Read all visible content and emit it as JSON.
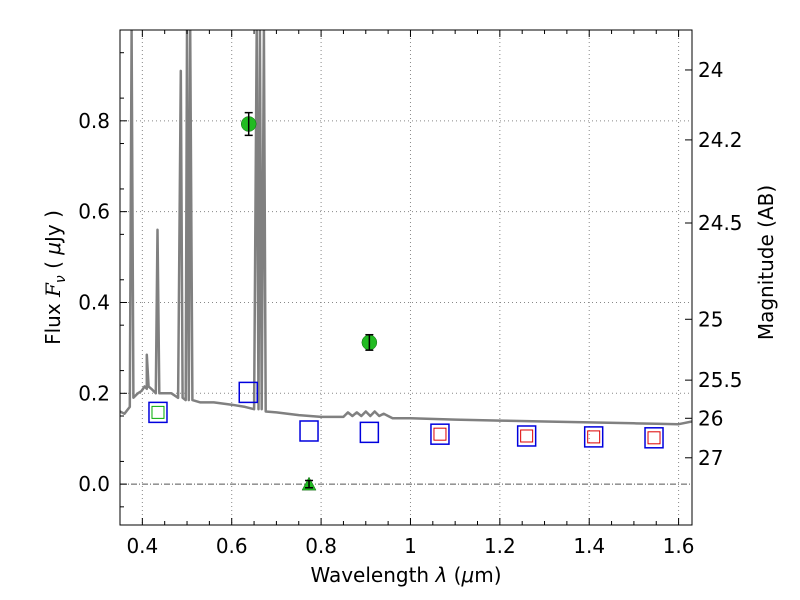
{
  "chart_data": {
    "type": "scatter",
    "xlabel": "Wavelength  λ (μm)",
    "ylabel": "Flux  F_ν  ( μJy )",
    "ylabel_right": "Magnitude (AB)",
    "xlim": [
      0.35,
      1.63
    ],
    "ylim": [
      -0.09,
      1.0
    ],
    "grid": true,
    "x_ticks": [
      0.4,
      0.6,
      0.8,
      1.0,
      1.2,
      1.4,
      1.6
    ],
    "x_tick_labels": [
      "0.4",
      "0.6",
      "0.8",
      "1",
      "1.2",
      "1.4",
      "1.6"
    ],
    "y_ticks": [
      0.0,
      0.2,
      0.4,
      0.6,
      0.8
    ],
    "y_tick_labels": [
      "0.0",
      "0.2",
      "0.4",
      "0.6",
      "0.8"
    ],
    "right_ticks": [
      {
        "label": "24",
        "flux": 0.912
      },
      {
        "label": "24.2",
        "flux": 0.758
      },
      {
        "label": "24.5",
        "flux": 0.575
      },
      {
        "label": "25",
        "flux": 0.363
      },
      {
        "label": "25.5",
        "flux": 0.229
      },
      {
        "label": "26",
        "flux": 0.145
      },
      {
        "label": "27",
        "flux": 0.058
      }
    ],
    "observed_points": [
      {
        "x": 0.638,
        "y": 0.793,
        "yerr": 0.025
      },
      {
        "x": 0.908,
        "y": 0.312,
        "yerr": 0.017
      }
    ],
    "upper_limit_points": [
      {
        "x": 0.773,
        "y": 0.0,
        "yerr": 0.008
      }
    ],
    "model_photometry_blue": [
      {
        "x": 0.435,
        "y": 0.158
      },
      {
        "x": 0.637,
        "y": 0.202
      },
      {
        "x": 0.773,
        "y": 0.117
      },
      {
        "x": 0.908,
        "y": 0.114
      },
      {
        "x": 1.066,
        "y": 0.11
      },
      {
        "x": 1.26,
        "y": 0.106
      },
      {
        "x": 1.41,
        "y": 0.104
      },
      {
        "x": 1.545,
        "y": 0.102
      }
    ],
    "model_photometry_red": [
      {
        "x": 1.066,
        "y": 0.11
      },
      {
        "x": 1.26,
        "y": 0.106
      },
      {
        "x": 1.41,
        "y": 0.104
      },
      {
        "x": 1.545,
        "y": 0.102
      }
    ],
    "model_photometry_green": [
      {
        "x": 0.435,
        "y": 0.158
      }
    ],
    "sed_curve": [
      [
        0.35,
        0.16
      ],
      [
        0.36,
        0.155
      ],
      [
        0.372,
        0.17
      ],
      [
        0.376,
        1.0
      ],
      [
        0.38,
        0.19
      ],
      [
        0.39,
        0.2
      ],
      [
        0.398,
        0.205
      ],
      [
        0.405,
        0.215
      ],
      [
        0.41,
        0.21
      ],
      [
        0.41,
        0.285
      ],
      [
        0.414,
        0.215
      ],
      [
        0.42,
        0.21
      ],
      [
        0.43,
        0.2
      ],
      [
        0.434,
        0.56
      ],
      [
        0.438,
        0.2
      ],
      [
        0.45,
        0.2
      ],
      [
        0.465,
        0.2
      ],
      [
        0.48,
        0.19
      ],
      [
        0.486,
        0.91
      ],
      [
        0.49,
        0.19
      ],
      [
        0.497,
        0.185
      ],
      [
        0.5,
        1.0
      ],
      [
        0.504,
        0.185
      ],
      [
        0.507,
        1.0
      ],
      [
        0.512,
        0.185
      ],
      [
        0.53,
        0.18
      ],
      [
        0.56,
        0.18
      ],
      [
        0.6,
        0.175
      ],
      [
        0.63,
        0.17
      ],
      [
        0.65,
        0.165
      ],
      [
        0.656,
        1.0
      ],
      [
        0.66,
        0.165
      ],
      [
        0.663,
        1.0
      ],
      [
        0.667,
        0.165
      ],
      [
        0.672,
        1.0
      ],
      [
        0.676,
        0.16
      ],
      [
        0.7,
        0.158
      ],
      [
        0.75,
        0.152
      ],
      [
        0.8,
        0.148
      ],
      [
        0.85,
        0.148
      ],
      [
        0.86,
        0.158
      ],
      [
        0.87,
        0.15
      ],
      [
        0.88,
        0.158
      ],
      [
        0.89,
        0.15
      ],
      [
        0.9,
        0.16
      ],
      [
        0.91,
        0.15
      ],
      [
        0.92,
        0.16
      ],
      [
        0.93,
        0.15
      ],
      [
        0.94,
        0.155
      ],
      [
        0.95,
        0.15
      ],
      [
        0.96,
        0.145
      ],
      [
        1.0,
        0.145
      ],
      [
        1.1,
        0.142
      ],
      [
        1.2,
        0.14
      ],
      [
        1.3,
        0.138
      ],
      [
        1.4,
        0.136
      ],
      [
        1.5,
        0.134
      ],
      [
        1.55,
        0.133
      ],
      [
        1.6,
        0.132
      ],
      [
        1.63,
        0.138
      ]
    ],
    "colors": {
      "sed_line": "#808080",
      "observed": "#22bb22",
      "model_blue": "#0000dd",
      "model_red": "#dd0000",
      "model_green": "#00aa00",
      "errorbar": "#000000",
      "grid": "#888888"
    }
  }
}
